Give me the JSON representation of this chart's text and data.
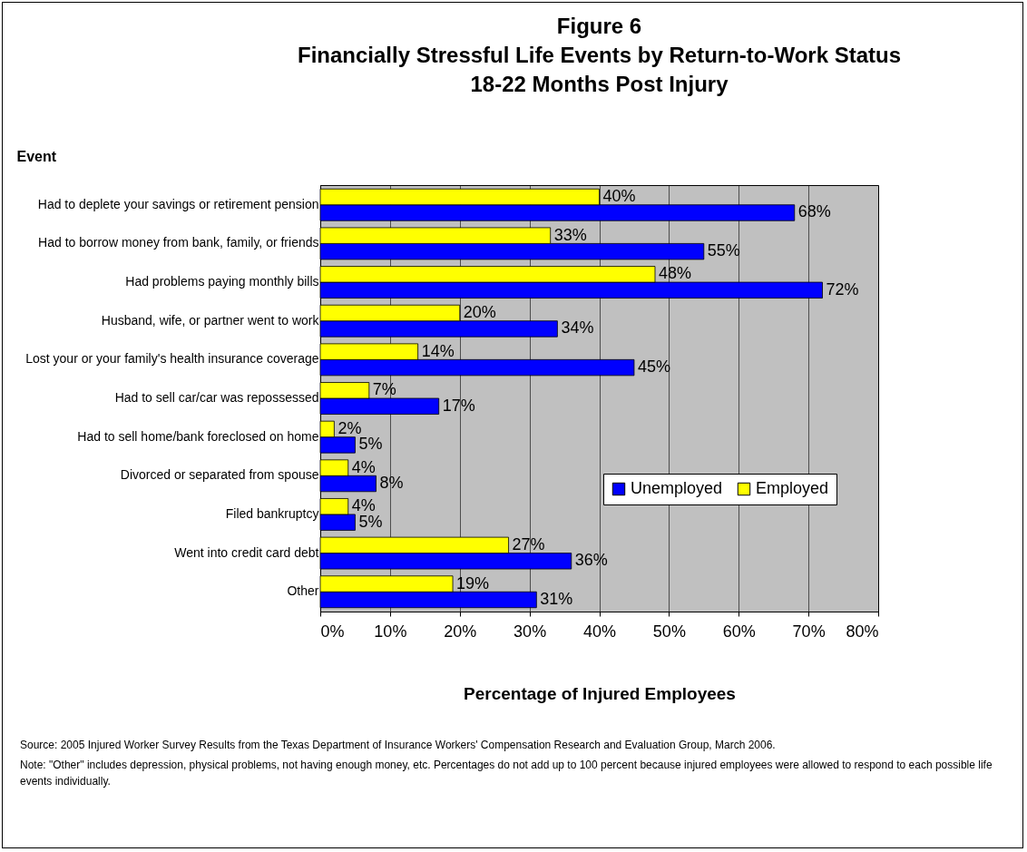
{
  "chart_data": {
    "type": "bar",
    "orientation": "horizontal",
    "title": "Figure 6\nFinancially Stressful Life Events by Return-to-Work Status\n18-22 Months Post Injury",
    "ylabel": "Event",
    "xlabel": "Percentage of Injured Employees",
    "categories": [
      "Had to deplete your savings or retirement pension",
      "Had to borrow money from bank, family, or friends",
      "Had problems paying monthly bills",
      "Husband, wife, or partner went to work",
      "Lost your or your family's health insurance coverage",
      "Had to sell car/car was repossessed",
      "Had to sell home/bank foreclosed on home",
      "Divorced or separated from spouse",
      "Filed bankruptcy",
      "Went into credit card debt",
      "Other"
    ],
    "series": [
      {
        "name": "Unemployed",
        "color": "#0000ff",
        "values": [
          68,
          55,
          72,
          34,
          45,
          17,
          5,
          8,
          5,
          36,
          31
        ],
        "value_labels": [
          "68%",
          "55%",
          "72%",
          "34%",
          "45%",
          "17%",
          "5%",
          "8%",
          "5%",
          "36%",
          "31%"
        ]
      },
      {
        "name": "Employed",
        "color": "#ffff00",
        "values": [
          40,
          33,
          48,
          20,
          14,
          7,
          2,
          4,
          4,
          27,
          19
        ],
        "value_labels": [
          "40%",
          "33%",
          "48%",
          "20%",
          "14%",
          "7%",
          "2%",
          "4%",
          "4%",
          "27%",
          "19%"
        ]
      }
    ],
    "xlim": [
      0,
      80
    ],
    "xticks": [
      {
        "value": 0,
        "label": "0%"
      },
      {
        "value": 10,
        "label": "10%"
      },
      {
        "value": 20,
        "label": "20%"
      },
      {
        "value": 30,
        "label": "30%"
      },
      {
        "value": 40,
        "label": "40%"
      },
      {
        "value": 50,
        "label": "50%"
      },
      {
        "value": 60,
        "label": "60%"
      },
      {
        "value": 70,
        "label": "70%"
      },
      {
        "value": 80,
        "label": "80%"
      }
    ],
    "grid": "x",
    "legend": "right",
    "annotations": [
      "Source: 2005 Injured Worker Survey Results from the Texas Department of Insurance Workers' Compensation Research and Evaluation Group, March 2006.",
      "Note: \"Other\" includes depression, physical problems, not having enough money, etc. Percentages do not add up to 100 percent because injured employees were allowed to respond to each possible life events individually."
    ]
  }
}
